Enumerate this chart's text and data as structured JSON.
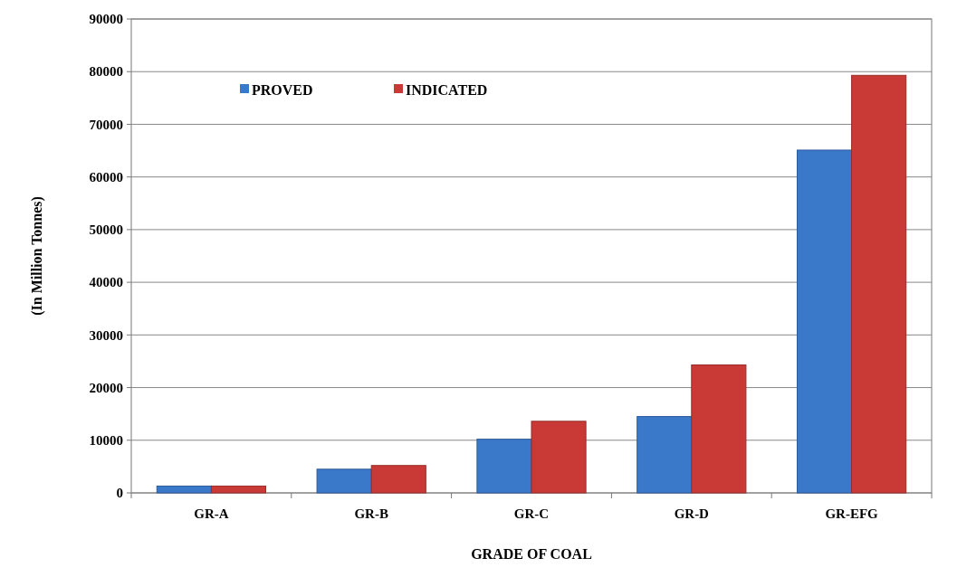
{
  "chart_data": {
    "type": "bar",
    "categories": [
      "GR-A",
      "GR-B",
      "GR-C",
      "GR-D",
      "GR-EFG"
    ],
    "series": [
      {
        "name": "PROVED",
        "color": "#3a78c9",
        "values": [
          1300,
          4500,
          10200,
          14500,
          65100
        ]
      },
      {
        "name": "INDICATED",
        "color": "#c93a36",
        "values": [
          1300,
          5200,
          13600,
          24300,
          79300
        ]
      }
    ],
    "xlabel": "GRADE OF COAL",
    "ylabel": "(In Million Tonnes)",
    "ylim": [
      0,
      90000
    ],
    "yticks": [
      0,
      10000,
      20000,
      30000,
      40000,
      50000,
      60000,
      70000,
      80000,
      90000
    ],
    "grid": "y",
    "legend": "top left"
  }
}
